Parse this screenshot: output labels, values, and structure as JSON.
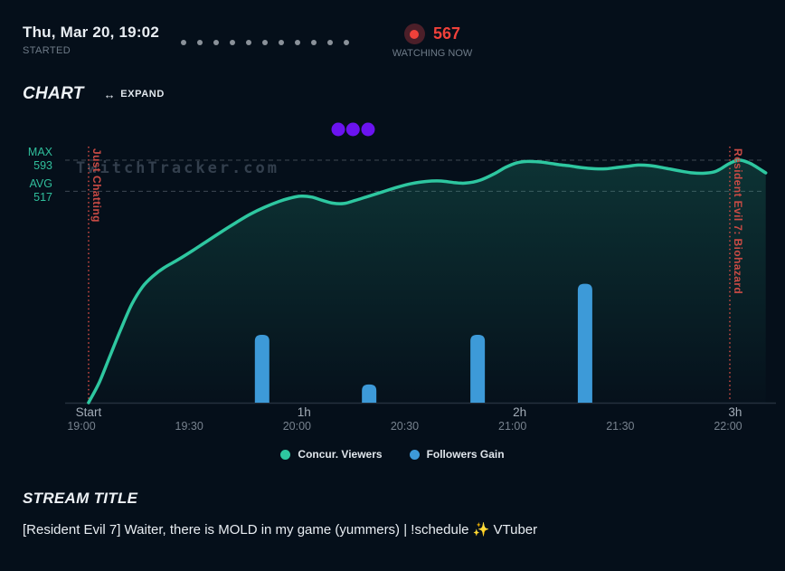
{
  "header": {
    "started_date": "Thu, Mar 20, 19:02",
    "started_label": "STARTED",
    "session_dots_count": 11,
    "watching_now": {
      "count": "567",
      "label": "WATCHING NOW",
      "accent_color": "#f0413a"
    }
  },
  "chart_section": {
    "title": "CHART",
    "expand_icon": "↔",
    "expand_label": "EXPAND",
    "watermark": "TwitchTracker.com"
  },
  "chart_data": {
    "type": "line",
    "x_unit": "minutes_after_19:00",
    "grid": "dashed_lines_at_max_and_avg",
    "legend_position": "bottom_center",
    "y_axis": {
      "max_label": "MAX",
      "max_value": 593,
      "avg_label": "AVG",
      "avg_value": 517
    },
    "series": [
      {
        "name": "Concur. Viewers",
        "type": "line",
        "color": "#2ec7a0",
        "points": [
          [
            2,
            0
          ],
          [
            5,
            50
          ],
          [
            8,
            115
          ],
          [
            11,
            180
          ],
          [
            14,
            240
          ],
          [
            17,
            283
          ],
          [
            20,
            310
          ],
          [
            23,
            330
          ],
          [
            27,
            350
          ],
          [
            31,
            372
          ],
          [
            35,
            395
          ],
          [
            39,
            418
          ],
          [
            43,
            440
          ],
          [
            47,
            461
          ],
          [
            51,
            478
          ],
          [
            55,
            492
          ],
          [
            58,
            500
          ],
          [
            61,
            505
          ],
          [
            64,
            503
          ],
          [
            67,
            495
          ],
          [
            70,
            488
          ],
          [
            73,
            487
          ],
          [
            76,
            494
          ],
          [
            80,
            505
          ],
          [
            84,
            516
          ],
          [
            88,
            527
          ],
          [
            92,
            536
          ],
          [
            96,
            541
          ],
          [
            100,
            542
          ],
          [
            104,
            538
          ],
          [
            107,
            537
          ],
          [
            111,
            544
          ],
          [
            115,
            560
          ],
          [
            118,
            575
          ],
          [
            121,
            586
          ],
          [
            124,
            590
          ],
          [
            127,
            589
          ],
          [
            130,
            586
          ],
          [
            133,
            582
          ],
          [
            136,
            579
          ],
          [
            139,
            575
          ],
          [
            143,
            572
          ],
          [
            146,
            572
          ],
          [
            149,
            575
          ],
          [
            152,
            578
          ],
          [
            155,
            581
          ],
          [
            158,
            580
          ],
          [
            161,
            576
          ],
          [
            164,
            571
          ],
          [
            167,
            566
          ],
          [
            170,
            562
          ],
          [
            173,
            561
          ],
          [
            176,
            564
          ],
          [
            178,
            572
          ],
          [
            180,
            583
          ],
          [
            182,
            591
          ],
          [
            183.5,
            593
          ],
          [
            186,
            586
          ],
          [
            188,
            576
          ],
          [
            190.5,
            562
          ]
        ]
      },
      {
        "name": "Followers Gain",
        "type": "bar",
        "color": "#3d9ad8",
        "bars": [
          {
            "t": 50.3,
            "height_frac": 0.28
          },
          {
            "t": 80.1,
            "height_frac": 0.075
          },
          {
            "t": 110.3,
            "height_frac": 0.28
          },
          {
            "t": 140.2,
            "height_frac": 0.49
          }
        ]
      }
    ],
    "x_ticks_elapsed": [
      {
        "label": "Start",
        "t": 2
      },
      {
        "label": "1h",
        "t": 62
      },
      {
        "label": "2h",
        "t": 122
      },
      {
        "label": "3h",
        "t": 182
      }
    ],
    "x_ticks_clock": [
      {
        "label": "19:00",
        "t": 0
      },
      {
        "label": "19:30",
        "t": 30
      },
      {
        "label": "20:00",
        "t": 60
      },
      {
        "label": "20:30",
        "t": 90
      },
      {
        "label": "21:00",
        "t": 120
      },
      {
        "label": "21:30",
        "t": 150
      },
      {
        "label": "22:00",
        "t": 180
      }
    ],
    "game_markers": [
      {
        "label": "Just Chatting",
        "t": 2
      },
      {
        "label": "Resident Evil 7: Biohazard",
        "t": 180.5
      }
    ],
    "event_dots": {
      "color": "#6b13f0",
      "times": [
        71.5,
        75.6,
        79.8
      ]
    }
  },
  "legend": [
    {
      "label": "Concur. Viewers",
      "color": "#2ec7a0"
    },
    {
      "label": "Followers Gain",
      "color": "#3d9ad8"
    }
  ],
  "stream_title_section": {
    "heading": "STREAM TITLE",
    "title": "[Resident Evil 7] Waiter, there is MOLD in my game (yummers) | !schedule ✨ VTuber"
  }
}
